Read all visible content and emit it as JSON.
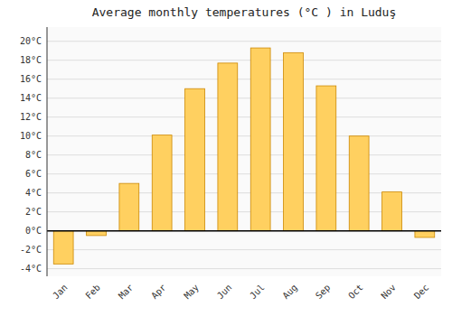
{
  "chart_data": {
    "type": "bar",
    "title": "Average monthly temperatures (°C ) in Luduş",
    "categories": [
      "Jan",
      "Feb",
      "Mar",
      "Apr",
      "May",
      "Jun",
      "Jul",
      "Aug",
      "Sep",
      "Oct",
      "Nov",
      "Dec"
    ],
    "values": [
      -3.5,
      -0.5,
      5.0,
      10.1,
      15.0,
      17.7,
      19.3,
      18.8,
      15.3,
      10.0,
      4.1,
      -0.7
    ],
    "color": "#FFD060",
    "ylim": [
      -4.8,
      21.5
    ],
    "yticks": [
      {
        "value": -4,
        "label": "-4°C"
      },
      {
        "value": -2,
        "label": "-2°C"
      },
      {
        "value": 0,
        "label": "0°C"
      },
      {
        "value": 2,
        "label": "2°C"
      },
      {
        "value": 4,
        "label": "4°C"
      },
      {
        "value": 6,
        "label": "6°C"
      },
      {
        "value": 8,
        "label": "8°C"
      },
      {
        "value": 10,
        "label": "10°C"
      },
      {
        "value": 12,
        "label": "12°C"
      },
      {
        "value": 14,
        "label": "14°C"
      },
      {
        "value": 16,
        "label": "16°C"
      },
      {
        "value": 18,
        "label": "18°C"
      },
      {
        "value": 20,
        "label": "20°C"
      }
    ],
    "grid": true
  }
}
